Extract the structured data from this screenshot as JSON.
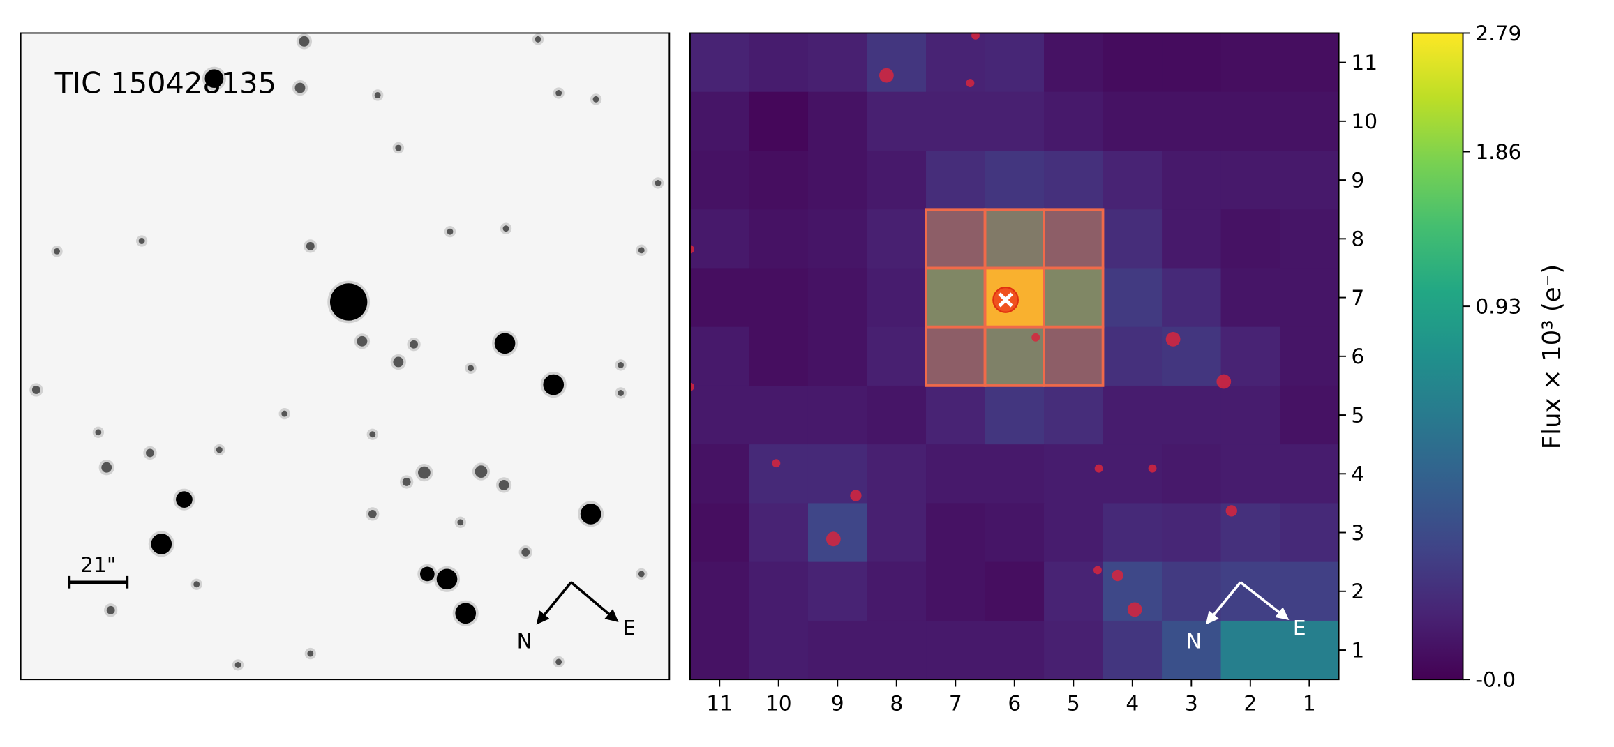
{
  "left_panel": {
    "title": "TIC 150428135",
    "scale_bar_label": "21\"",
    "compass": {
      "north": "N",
      "east": "E"
    }
  },
  "chart_data": {
    "type": "heatmap",
    "title": "",
    "x_tick_labels": [
      "11",
      "10",
      "9",
      "8",
      "7",
      "6",
      "5",
      "4",
      "3",
      "2",
      "1"
    ],
    "y_tick_labels": [
      "11",
      "10",
      "9",
      "8",
      "7",
      "6",
      "5",
      "4",
      "3",
      "2",
      "1"
    ],
    "values_rows_top_to_bottom_cols_11_to_1": [
      [
        0.028,
        0.018,
        0.023,
        0.071,
        0.028,
        0.034,
        0.007,
        0.003,
        0.003,
        0.004,
        0.004
      ],
      [
        0.01,
        0.001,
        0.007,
        0.023,
        0.023,
        0.023,
        0.014,
        0.007,
        0.007,
        0.007,
        0.007
      ],
      [
        0.007,
        0.004,
        0.007,
        0.014,
        0.047,
        0.071,
        0.055,
        0.028,
        0.014,
        0.014,
        0.014
      ],
      [
        0.014,
        0.007,
        0.01,
        0.023,
        0.174,
        0.565,
        0.174,
        0.047,
        0.014,
        0.007,
        0.01
      ],
      [
        0.004,
        0.004,
        0.007,
        0.018,
        0.844,
        2.79,
        0.844,
        0.081,
        0.04,
        0.01,
        0.01
      ],
      [
        0.014,
        0.004,
        0.007,
        0.023,
        0.174,
        0.698,
        0.174,
        0.055,
        0.071,
        0.028,
        0.01
      ],
      [
        0.014,
        0.014,
        0.014,
        0.01,
        0.028,
        0.071,
        0.047,
        0.018,
        0.018,
        0.018,
        0.007
      ],
      [
        0.007,
        0.04,
        0.04,
        0.023,
        0.014,
        0.014,
        0.018,
        0.018,
        0.014,
        0.018,
        0.018
      ],
      [
        0.004,
        0.028,
        0.123,
        0.023,
        0.007,
        0.01,
        0.018,
        0.04,
        0.034,
        0.055,
        0.04
      ],
      [
        0.007,
        0.018,
        0.028,
        0.014,
        0.007,
        0.004,
        0.028,
        0.135,
        0.081,
        0.101,
        0.101
      ],
      [
        0.007,
        0.018,
        0.014,
        0.014,
        0.014,
        0.014,
        0.023,
        0.071,
        0.174,
        0.516,
        0.516
      ]
    ],
    "aperture_pixels": [
      [
        7,
        8
      ],
      [
        6,
        8
      ],
      [
        5,
        8
      ],
      [
        7,
        7
      ],
      [
        6,
        7
      ],
      [
        5,
        7
      ],
      [
        7,
        6
      ],
      [
        6,
        6
      ],
      [
        5,
        6
      ]
    ],
    "target": {
      "col": 6.15,
      "row": 6.96
    },
    "gaia_sources": [
      {
        "col": 6.66,
        "row": 11.46,
        "size": "small"
      },
      {
        "col": 8.17,
        "row": 10.78,
        "size": "large"
      },
      {
        "col": 6.75,
        "row": 10.65,
        "size": "small"
      },
      {
        "col": 11.5,
        "row": 7.82,
        "size": "small"
      },
      {
        "col": 5.64,
        "row": 6.32,
        "size": "small"
      },
      {
        "col": 3.31,
        "row": 6.29,
        "size": "large"
      },
      {
        "col": 2.45,
        "row": 5.57,
        "size": "large"
      },
      {
        "col": 11.5,
        "row": 5.48,
        "size": "small"
      },
      {
        "col": 10.04,
        "row": 4.18,
        "size": "small"
      },
      {
        "col": 4.57,
        "row": 4.09,
        "size": "small"
      },
      {
        "col": 3.66,
        "row": 4.09,
        "size": "small"
      },
      {
        "col": 8.69,
        "row": 3.63,
        "size": "medium"
      },
      {
        "col": 2.32,
        "row": 3.37,
        "size": "medium"
      },
      {
        "col": 9.07,
        "row": 2.89,
        "size": "large"
      },
      {
        "col": 4.59,
        "row": 2.36,
        "size": "small"
      },
      {
        "col": 4.25,
        "row": 2.27,
        "size": "medium"
      },
      {
        "col": 3.96,
        "row": 1.69,
        "size": "large"
      }
    ],
    "compass": {
      "north": "N",
      "east": "E"
    },
    "colorbar": {
      "label": "Flux × 10³ (e⁻)",
      "range": [
        0,
        2.79
      ],
      "scale": "sqrt",
      "ticks": [
        {
          "value": 2.79,
          "label": "2.79"
        },
        {
          "value": 1.86,
          "label": "1.86"
        },
        {
          "value": 0.93,
          "label": "0.93"
        },
        {
          "value": 0,
          "label": "-0.0"
        }
      ]
    }
  },
  "colors": {
    "aperture": "#f06a4a",
    "gaia_source": "#d7263d",
    "target": "#f0521e"
  }
}
